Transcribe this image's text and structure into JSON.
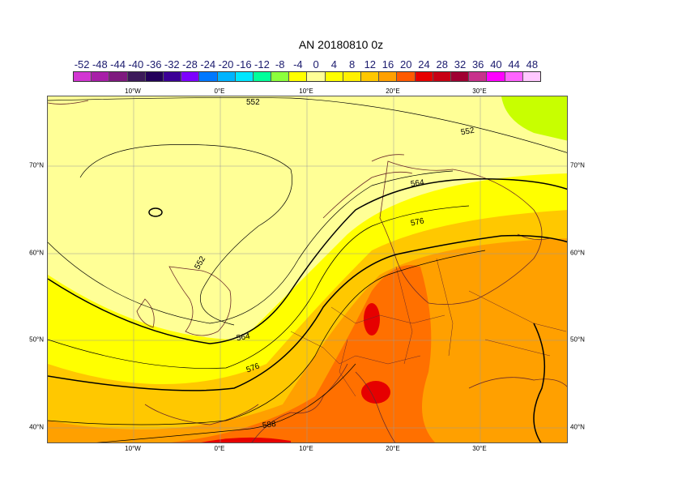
{
  "title": "AN  20180810 0z",
  "colorbar": {
    "labels": [
      "-52",
      "-48",
      "-44",
      "-40",
      "-36",
      "-32",
      "-28",
      "-24",
      "-20",
      "-16",
      "-12",
      "-8",
      "-4",
      "0",
      "4",
      "8",
      "12",
      "16",
      "20",
      "24",
      "28",
      "32",
      "36",
      "40",
      "44",
      "48"
    ],
    "colors": [
      "#d236d2",
      "#a81fa8",
      "#7f1a7f",
      "#3c1a5a",
      "#23005a",
      "#3c0096",
      "#7d00ff",
      "#0078ff",
      "#00b4ff",
      "#00e6ff",
      "#00ff9b",
      "#8cff3c",
      "#ffff00",
      "#ffff96",
      "#ffff00",
      "#fff000",
      "#ffc800",
      "#ffa000",
      "#ff5a00",
      "#e60000",
      "#c80014",
      "#a00032",
      "#c8328c",
      "#ff00ff",
      "#ff64ff",
      "#ffc8ff"
    ]
  },
  "map": {
    "lon_ticks": [
      "10°W",
      "0°E",
      "10°E",
      "20°E",
      "30°E"
    ],
    "lat_ticks": [
      "70°N",
      "60°N",
      "50°N",
      "40°N"
    ],
    "contour_labels": [
      "552",
      "552",
      "552",
      "564",
      "576",
      "564",
      "576",
      "588"
    ]
  }
}
